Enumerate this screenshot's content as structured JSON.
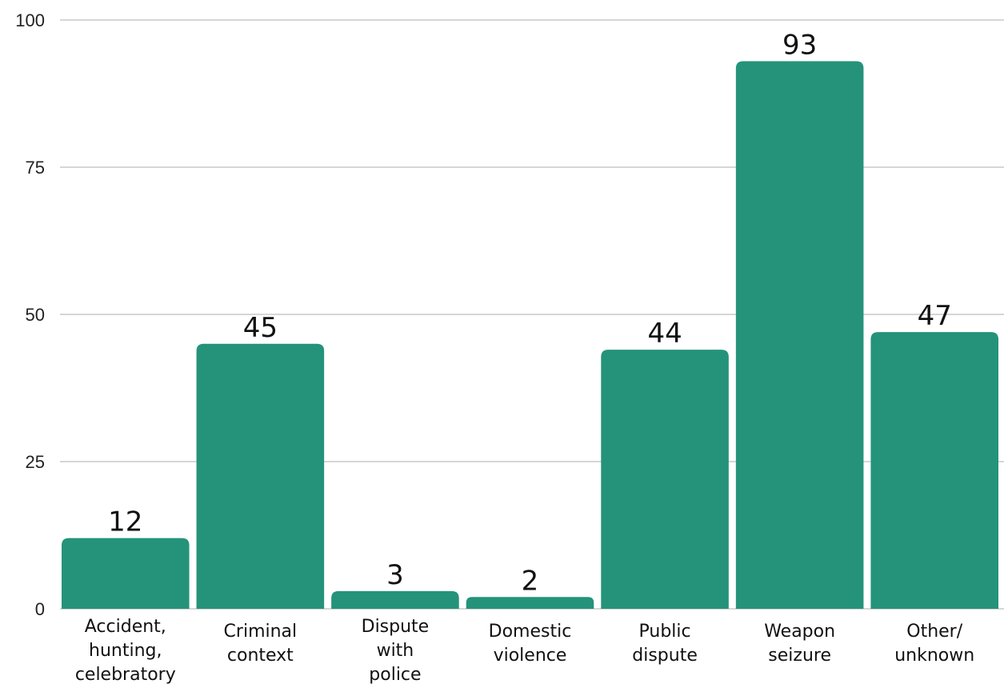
{
  "chart_data": {
    "type": "bar",
    "categories": [
      [
        "Accident,",
        "hunting,",
        "celebratory"
      ],
      [
        "Criminal",
        "context"
      ],
      [
        "Dispute",
        "with",
        "police"
      ],
      [
        "Domestic",
        "violence"
      ],
      [
        "Public",
        "dispute"
      ],
      [
        "Weapon",
        "seizure"
      ],
      [
        "Other/",
        "unknown"
      ]
    ],
    "values": [
      12,
      45,
      3,
      2,
      44,
      93,
      47
    ],
    "value_labels": [
      "12",
      "45",
      "3",
      "2",
      "44",
      "93",
      "47"
    ],
    "yticks": [
      "0",
      "25",
      "50",
      "75",
      "100"
    ],
    "ylim": [
      0,
      100
    ],
    "grid": true,
    "bar_color": "#24937a"
  }
}
